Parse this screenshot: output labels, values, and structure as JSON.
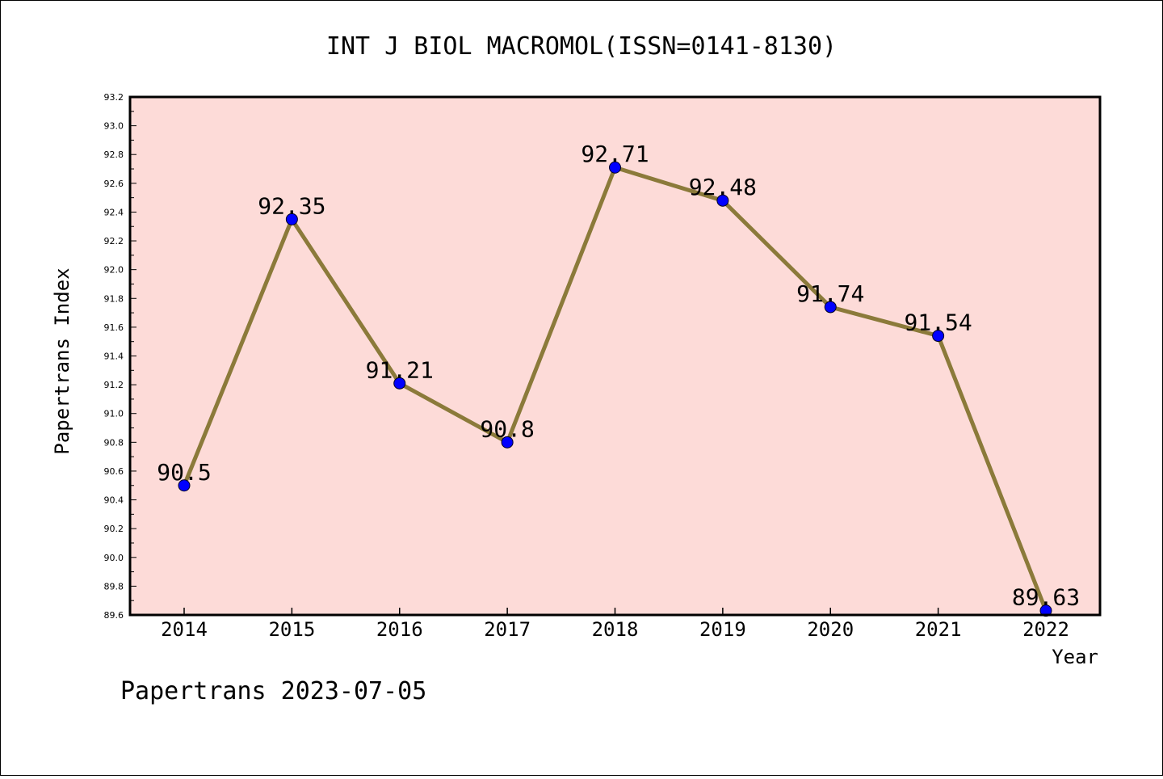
{
  "chart_data": {
    "type": "line",
    "title": "INT J BIOL MACROMOL(ISSN=0141-8130)",
    "xlabel": "Year",
    "ylabel": "Papertrans Index",
    "categories": [
      "2014",
      "2015",
      "2016",
      "2017",
      "2018",
      "2019",
      "2020",
      "2021",
      "2022"
    ],
    "series": [
      {
        "values": [
          90.5,
          92.35,
          91.21,
          90.8,
          92.71,
          92.48,
          91.74,
          91.54,
          89.63
        ]
      }
    ],
    "data_labels": [
      "90.5",
      "92.35",
      "91.21",
      "90.8",
      "92.71",
      "92.48",
      "91.74",
      "91.54",
      "89.63"
    ],
    "ylim": [
      89.6,
      93.2
    ],
    "yticks": [
      "89.6",
      "89.8",
      "90.0",
      "90.2",
      "90.4",
      "90.6",
      "90.8",
      "91.0",
      "91.2",
      "91.4",
      "91.6",
      "91.8",
      "92.0",
      "92.2",
      "92.4",
      "92.6",
      "92.8",
      "93.0",
      "93.2"
    ],
    "grid": false,
    "colors": {
      "plot_background": "#fddbd8",
      "line": "#8b7a3a",
      "marker": "#0000ff"
    }
  },
  "footer": "Papertrans 2023-07-05"
}
